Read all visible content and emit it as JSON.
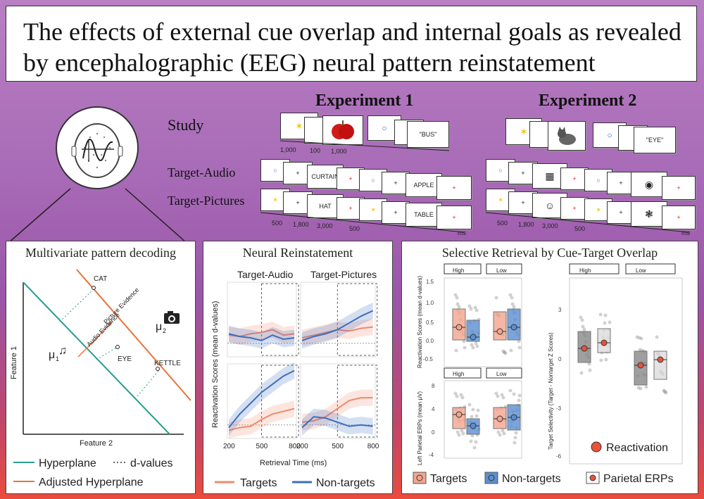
{
  "title": "The effects of external cue overlap and internal goals as revealed by encephalographic (EEG) neural pattern reinstatement",
  "experiments": {
    "exp1_label": "Experiment 1",
    "exp2_label": "Experiment 2",
    "study_label": "Study",
    "target_audio_label": "Target-Audio",
    "target_pictures_label": "Target-Pictures",
    "study_words": {
      "exp1": "\"BUS\"",
      "exp2": "\"EYE\""
    },
    "study_timing": [
      "1,000",
      "100",
      "1,000"
    ],
    "trial_words": {
      "audio1": "CURTAIN",
      "audio2": "APPLE",
      "pic1": "HAT",
      "pic2": "TABLE"
    },
    "trial_timing": [
      "500",
      "1,800",
      "3,000",
      "500"
    ],
    "ms_label": "ms",
    "fixation": "+"
  },
  "decoding": {
    "title": "Multivariate pattern decoding",
    "feature1": "Feature 1",
    "feature2": "Feature 2",
    "labels": {
      "cat": "CAT",
      "eye": "EYE",
      "kettle": "KETTLE",
      "audio_evidence": "Audio Evidence",
      "picture_evidence": "Picture Evidence",
      "mu1": "μ",
      "mu2": "μ",
      "sub1": "1",
      "sub2": "2"
    },
    "legend": {
      "hyperplane": "Hyperplane",
      "dvalues": "d-values",
      "adjusted": "Adjusted Hyperplane"
    },
    "colors": {
      "hyperplane": "#2a9d8f",
      "adjusted": "#e8743b"
    }
  },
  "reinstatement": {
    "title": "Neural Reinstatement",
    "col_audio": "Target-Audio",
    "col_pictures": "Target-Pictures",
    "ylabel": "Reactivation Scores (mean d-values)",
    "xlabel": "Retrieval Time (ms)",
    "xticks": [
      "200",
      "500",
      "800"
    ],
    "legend": {
      "targets": "Targets",
      "nontargets": "Non-targets"
    },
    "colors": {
      "targets": "#f08a6c",
      "nontargets": "#3b6fc0"
    }
  },
  "chart_data": [
    {
      "type": "line",
      "title": "Target-Audio (Experiment 1)",
      "x": [
        200,
        300,
        400,
        500,
        600,
        700,
        800
      ],
      "xlabel": "Retrieval Time (ms)",
      "ylabel": "Reactivation Scores (mean d-values)",
      "series": [
        {
          "name": "Targets",
          "values": [
            0.06,
            0.05,
            0.07,
            0.08,
            0.1,
            0.06,
            0.07
          ]
        },
        {
          "name": "Non-targets",
          "values": [
            0.07,
            0.05,
            0.04,
            0.02,
            0.06,
            0.03,
            0.04
          ]
        }
      ]
    },
    {
      "type": "line",
      "title": "Target-Pictures (Experiment 1)",
      "x": [
        200,
        300,
        400,
        500,
        600,
        700,
        800
      ],
      "series": [
        {
          "name": "Targets",
          "values": [
            0.04,
            0.06,
            0.08,
            0.1,
            0.09,
            0.11,
            0.12
          ]
        },
        {
          "name": "Non-targets",
          "values": [
            0.02,
            0.05,
            0.07,
            0.1,
            0.15,
            0.2,
            0.24
          ]
        }
      ]
    },
    {
      "type": "line",
      "title": "Target-Audio (Experiment 2)",
      "x": [
        200,
        300,
        400,
        500,
        600,
        700,
        800
      ],
      "series": [
        {
          "name": "Targets",
          "values": [
            -0.04,
            -0.02,
            -0.01,
            0.04,
            0.08,
            0.1,
            0.12
          ]
        },
        {
          "name": "Non-targets",
          "values": [
            -0.02,
            0.08,
            0.16,
            0.24,
            0.3,
            0.36,
            0.4
          ]
        }
      ]
    },
    {
      "type": "line",
      "title": "Target-Pictures (Experiment 2)",
      "x": [
        200,
        300,
        400,
        500,
        600,
        700,
        800
      ],
      "series": [
        {
          "name": "Targets",
          "values": [
            0.02,
            0.03,
            0.06,
            0.12,
            0.18,
            0.2,
            0.2
          ]
        },
        {
          "name": "Non-targets",
          "values": [
            -0.02,
            0.06,
            0.05,
            0.02,
            -0.01,
            0.0,
            -0.01
          ]
        }
      ]
    }
  ],
  "selective": {
    "title": "Selective Retrieval by Cue-Target Overlap",
    "facet_high": "High",
    "facet_low": "Low",
    "ylabel_top": "Reactivation Scores (mean d-values)",
    "ylabel_bottom": "Left Parietal ERPs (mean μV)",
    "ylabel_right": "Target Selectivity (Target - Nontarget Z Scores)",
    "yticks_top": [
      "1.5",
      "1.0",
      "0.5",
      "0.0",
      "-0.5"
    ],
    "yticks_bottom": [
      "8",
      "4",
      "0",
      "-4"
    ],
    "yticks_right": [
      "3",
      "0",
      "-3",
      "-6"
    ],
    "legend": {
      "targets": "Targets",
      "nontargets": "Non-targets",
      "reactivation": "Reactivation",
      "parietal": "Parietal ERPs"
    },
    "colors": {
      "targets": "#f3a58e",
      "nontargets": "#5b8fd1",
      "dot": "#e8533a"
    }
  }
}
